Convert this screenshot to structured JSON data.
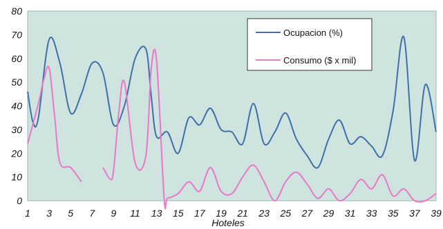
{
  "chart_data": {
    "type": "line",
    "xlabel": "Hoteles",
    "ylabel": "",
    "xlim": [
      1,
      39
    ],
    "ylim": [
      0,
      80
    ],
    "y_ticks": [
      0,
      10,
      20,
      30,
      40,
      50,
      60,
      70,
      80
    ],
    "x_ticks": [
      1,
      3,
      5,
      7,
      9,
      11,
      13,
      15,
      17,
      19,
      21,
      23,
      25,
      27,
      29,
      31,
      33,
      35,
      37,
      39
    ],
    "grid": false,
    "legend_position": "top-right",
    "plot_background": "#cfe3df",
    "series": [
      {
        "name": "Ocupacion (%)",
        "color": "#3d6fa8",
        "x": [
          1,
          1.5,
          2,
          3,
          4,
          5,
          6,
          7,
          8,
          9,
          10,
          11,
          12,
          12.5,
          13,
          14,
          15,
          16,
          17,
          18,
          19,
          20,
          21,
          22,
          23,
          24,
          25,
          26,
          27,
          28,
          29,
          30,
          31,
          32,
          33,
          34,
          35,
          36,
          37,
          38,
          39
        ],
        "y": [
          46,
          33,
          35,
          68,
          58,
          37,
          45,
          58,
          54,
          32,
          40,
          60,
          64,
          44,
          27,
          29,
          20,
          35,
          32,
          39,
          30,
          29,
          24,
          41,
          24,
          29,
          37,
          26,
          19,
          14,
          26,
          34,
          24,
          27,
          23,
          19,
          38,
          69,
          17,
          49,
          29
        ]
      },
      {
        "name": "Consumo ($ x mil)",
        "color": "#e878c8",
        "x": [
          1,
          2,
          2.5,
          3,
          3.5,
          4,
          5,
          6,
          null,
          8,
          8.7,
          9,
          9.5,
          10,
          11,
          12,
          12.5,
          13,
          13.7,
          14,
          15,
          16,
          17,
          18,
          19,
          20,
          21,
          22,
          23,
          24,
          25,
          26,
          27,
          28,
          29,
          30,
          31,
          32,
          33,
          34,
          35,
          36,
          37,
          38,
          39
        ],
        "y": [
          24,
          41,
          51,
          56,
          36,
          16,
          14,
          8,
          null,
          14,
          9,
          13,
          38,
          50,
          16,
          19,
          56,
          59,
          1,
          1,
          3,
          8,
          4,
          14,
          4,
          3,
          10,
          15,
          8,
          0,
          8,
          12,
          7,
          1,
          5,
          0,
          3,
          9,
          5,
          11,
          2,
          5,
          0,
          0,
          3
        ]
      }
    ]
  }
}
